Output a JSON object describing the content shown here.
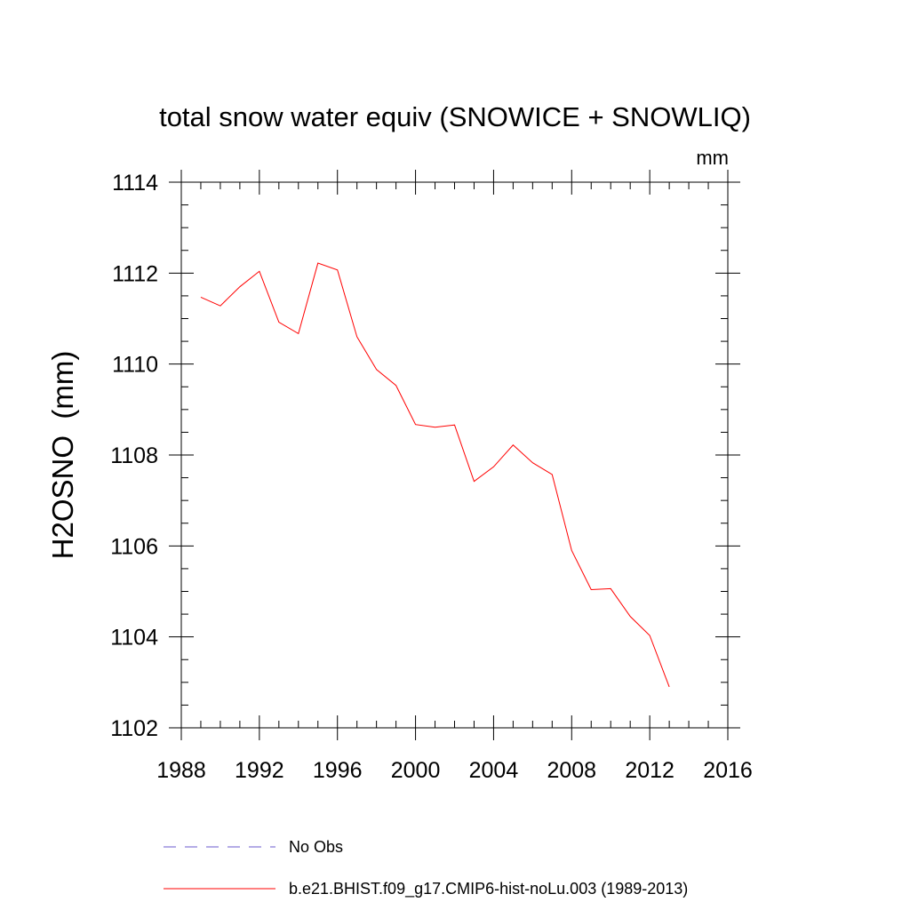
{
  "chart_data": {
    "type": "line",
    "title": "total snow water equiv (SNOWICE + SNOWLIQ)",
    "units": "mm",
    "xlabel": "",
    "ylabel": "H2OSNO  (mm)",
    "xlim": [
      1988,
      2016
    ],
    "ylim": [
      1102,
      1114
    ],
    "x_ticks": [
      1988,
      1992,
      1996,
      2000,
      2004,
      2008,
      2012,
      2016
    ],
    "y_ticks": [
      1102,
      1104,
      1106,
      1108,
      1110,
      1112,
      1114
    ],
    "x_minor_step": 1,
    "y_minor_step": 0.5,
    "grid": false,
    "legend_position": "bottom",
    "series": [
      {
        "name": "No Obs",
        "style": "dashed",
        "color": "#6a5acd",
        "x": [],
        "values": []
      },
      {
        "name": "b.e21.BHIST.f09_g17.CMIP6-hist-noLu.003 (1989-2013)",
        "style": "solid",
        "color": "#ff0000",
        "x": [
          1989,
          1990,
          1991,
          1992,
          1993,
          1994,
          1995,
          1996,
          1997,
          1998,
          1999,
          2000,
          2001,
          2002,
          2003,
          2004,
          2005,
          2006,
          2007,
          2008,
          2009,
          2010,
          2011,
          2012,
          2013
        ],
        "values": [
          1111.47,
          1111.28,
          1111.7,
          1112.04,
          1110.92,
          1110.67,
          1112.22,
          1112.07,
          1110.6,
          1109.88,
          1109.53,
          1108.67,
          1108.61,
          1108.66,
          1107.42,
          1107.74,
          1108.22,
          1107.83,
          1107.57,
          1105.9,
          1105.04,
          1105.06,
          1104.45,
          1104.03,
          1102.9
        ]
      }
    ]
  }
}
